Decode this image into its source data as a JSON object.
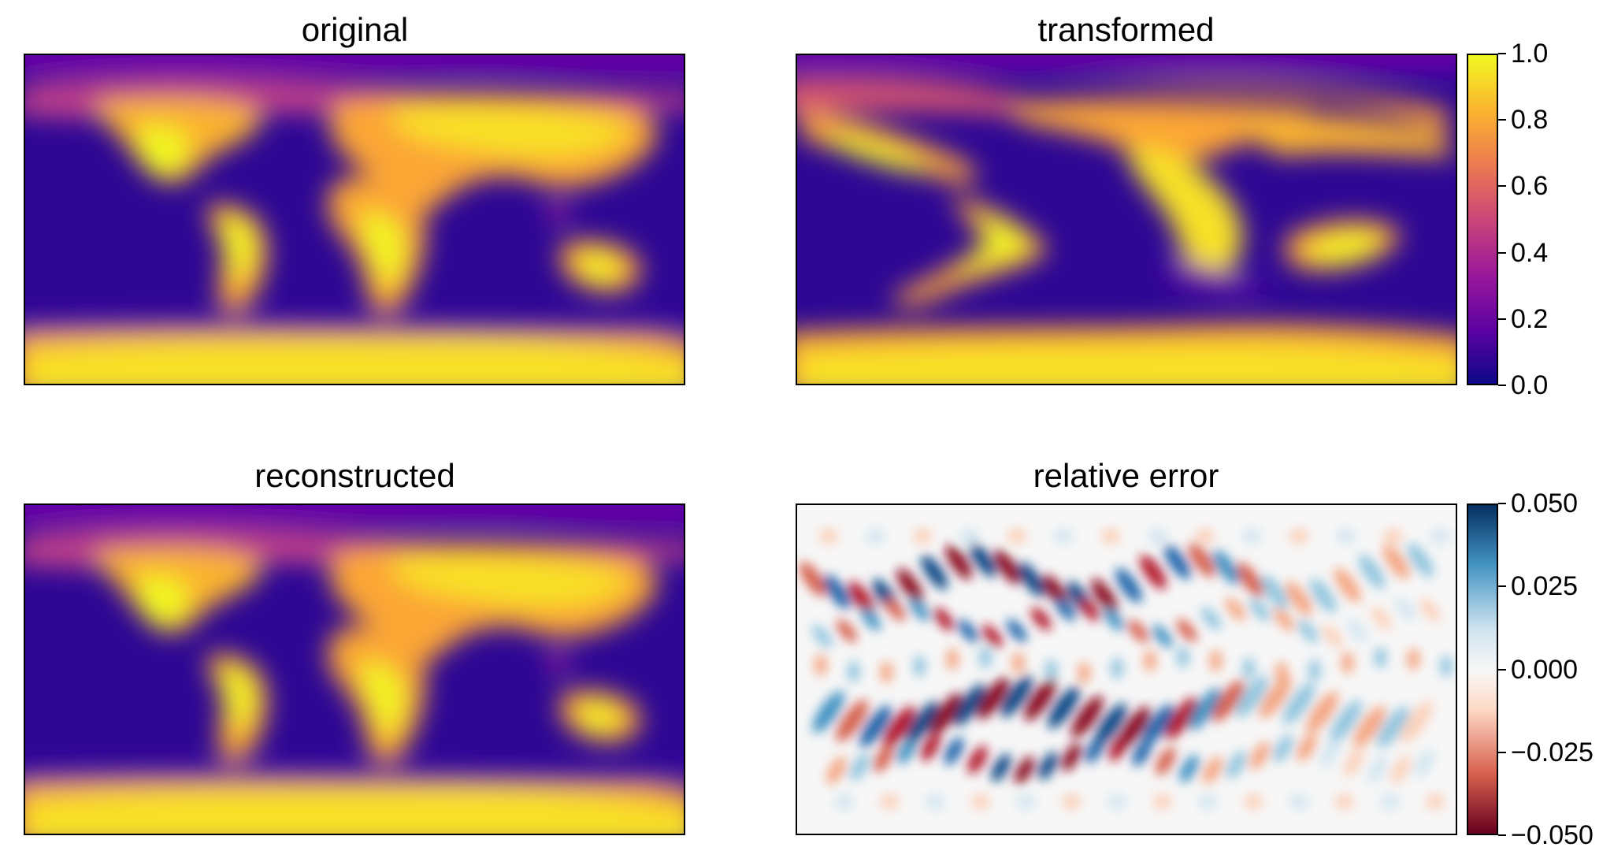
{
  "chart_data": [
    {
      "type": "heatmap",
      "id": "original",
      "title": "original",
      "colormap": "plasma",
      "vmin": 0.0,
      "vmax": 1.0
    },
    {
      "type": "heatmap",
      "id": "transformed",
      "title": "transformed",
      "colormap": "plasma",
      "vmin": 0.0,
      "vmax": 1.0,
      "colorbar": {
        "ticks": [
          "0.0",
          "0.2",
          "0.4",
          "0.6",
          "0.8",
          "1.0"
        ]
      }
    },
    {
      "type": "heatmap",
      "id": "reconstructed",
      "title": "reconstructed",
      "colormap": "plasma",
      "vmin": 0.0,
      "vmax": 1.0
    },
    {
      "type": "heatmap",
      "id": "relative-error",
      "title": "relative error",
      "colormap": "RdBu",
      "vmin": -0.05,
      "vmax": 0.05,
      "colorbar": {
        "ticks": [
          "−0.050",
          "−0.025",
          "0.000",
          "0.025",
          "0.050"
        ]
      }
    }
  ],
  "colors": {
    "plasma": [
      "#0d0887",
      "#5b02a3",
      "#9a179b",
      "#cb4678",
      "#eb7852",
      "#fbb32f",
      "#f0f921"
    ],
    "rdbu": [
      "#67001f",
      "#d6604d",
      "#fddbc7",
      "#f7f7f7",
      "#d1e5f0",
      "#4393c3",
      "#053061"
    ]
  }
}
